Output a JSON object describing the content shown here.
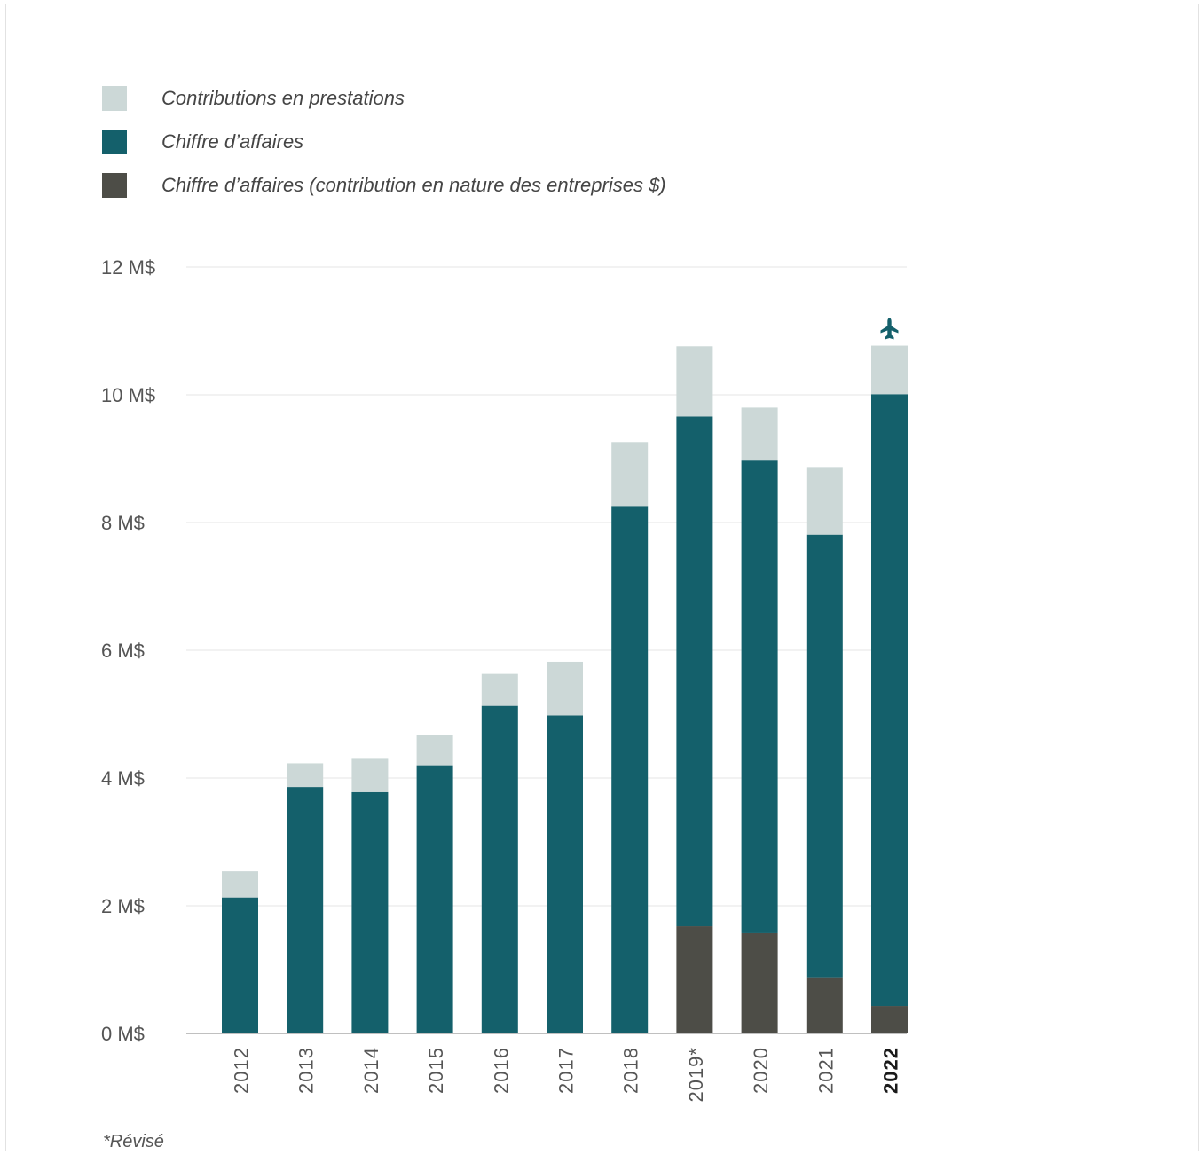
{
  "legend": [
    {
      "label": "Contributions en prestations",
      "color": "#ccd8d7"
    },
    {
      "label": "Chiffre d’affaires",
      "color": "#14606b"
    },
    {
      "label": "Chiffre d’affaires (contribution en nature des entreprises $)",
      "color": "#4d4d47"
    }
  ],
  "footnote": "*Révisé",
  "chart_data": {
    "type": "bar",
    "stacked": true,
    "categories": [
      "2012",
      "2013",
      "2014",
      "2015",
      "2016",
      "2017",
      "2018",
      "2019*",
      "2020",
      "2021",
      "2022"
    ],
    "highlight_category": "2022",
    "highlight_icon": "airplane-icon",
    "y_tick_labels": [
      "0 M$",
      "2 M$",
      "4 M$",
      "6 M$",
      "8 M$",
      "10 M$",
      "12 M$"
    ],
    "ylim": [
      0,
      12
    ],
    "grid": true,
    "legend_position": "top-left",
    "series": [
      {
        "name": "Chiffre d’affaires (contribution en nature des entreprises $)",
        "color": "#4d4d47",
        "values": [
          0,
          0,
          0,
          0,
          0,
          0,
          0,
          1.68,
          1.57,
          0.88,
          0.43
        ]
      },
      {
        "name": "Chiffre d’affaires",
        "color": "#14606b",
        "values": [
          2.13,
          3.86,
          3.78,
          4.2,
          5.13,
          4.98,
          8.26,
          7.98,
          7.4,
          6.93,
          9.58
        ]
      },
      {
        "name": "Contributions en prestations",
        "color": "#ccd8d7",
        "values": [
          0.41,
          0.37,
          0.52,
          0.48,
          0.5,
          0.84,
          1.0,
          1.1,
          0.83,
          1.06,
          0.76
        ]
      }
    ]
  }
}
